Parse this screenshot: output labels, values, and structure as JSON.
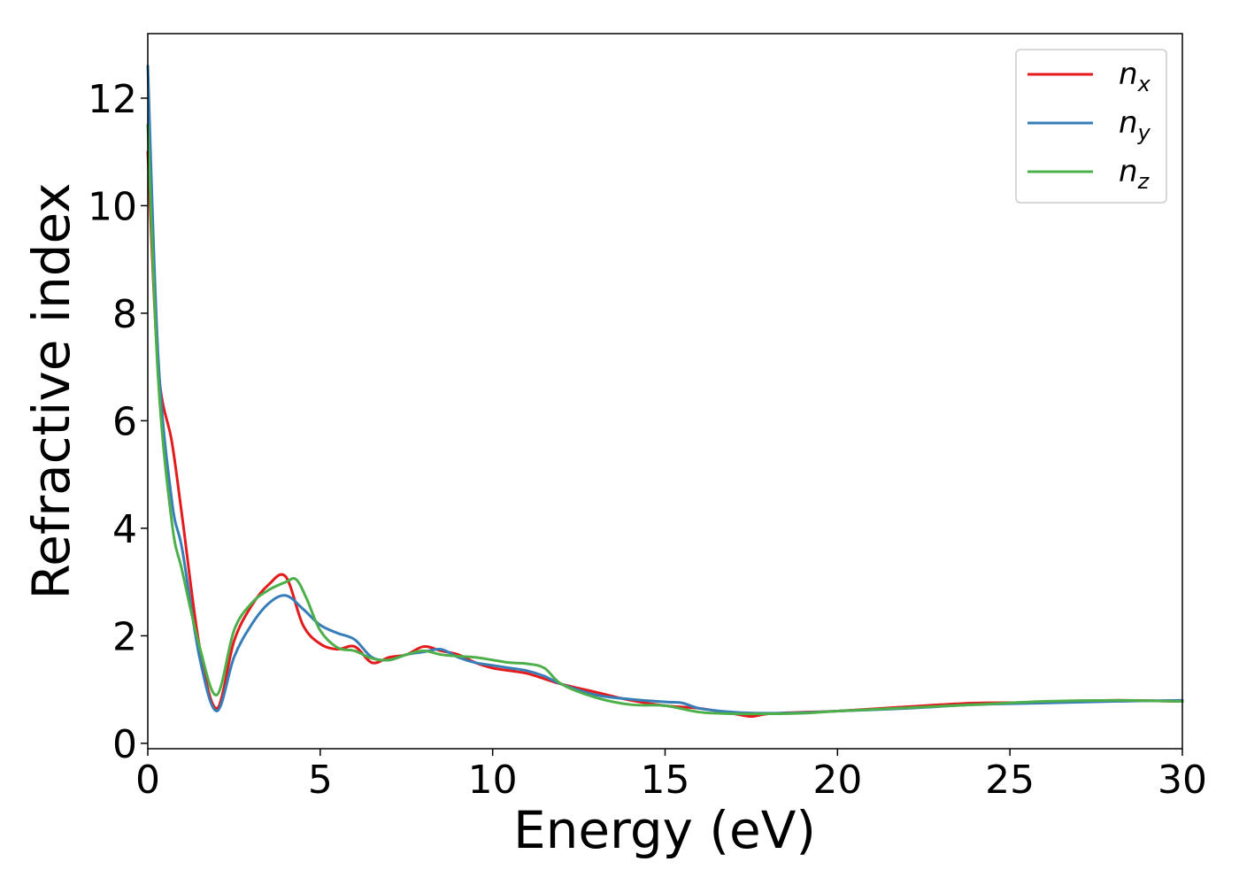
{
  "chart_data": {
    "type": "line",
    "title": "",
    "xlabel": "Energy (eV)",
    "ylabel": "Refractive index",
    "xlim": [
      0,
      30
    ],
    "ylim": [
      -0.1,
      13.2
    ],
    "xticks": [
      0,
      5,
      10,
      15,
      20,
      25,
      30
    ],
    "yticks": [
      0,
      2,
      4,
      6,
      8,
      10,
      12
    ],
    "grid": false,
    "legend": "top-right",
    "series": [
      {
        "name": "n_x",
        "base": "n",
        "sub": "x",
        "color": "#e41a1c",
        "x": [
          0,
          0.3,
          0.7,
          1.0,
          1.5,
          2.0,
          2.5,
          3.0,
          3.5,
          4.0,
          4.5,
          5.0,
          5.5,
          6.0,
          6.5,
          7.0,
          7.5,
          8.0,
          8.5,
          9.0,
          9.5,
          10.0,
          10.5,
          11.0,
          11.5,
          12.0,
          13.0,
          14.0,
          15.0,
          16.0,
          17.0,
          17.5,
          18.0,
          19.0,
          20.0,
          22.0,
          24.0,
          26.0,
          28.0,
          30.0
        ],
        "y": [
          11.0,
          7.0,
          5.6,
          4.2,
          1.8,
          0.65,
          1.9,
          2.55,
          2.95,
          3.1,
          2.2,
          1.85,
          1.75,
          1.8,
          1.5,
          1.6,
          1.65,
          1.8,
          1.72,
          1.65,
          1.5,
          1.4,
          1.35,
          1.3,
          1.2,
          1.1,
          0.95,
          0.8,
          0.7,
          0.65,
          0.55,
          0.5,
          0.55,
          0.58,
          0.6,
          0.68,
          0.75,
          0.76,
          0.8,
          0.78
        ]
      },
      {
        "name": "n_y",
        "base": "n",
        "sub": "y",
        "color": "#377eb8",
        "x": [
          0,
          0.3,
          0.7,
          1.0,
          1.5,
          2.0,
          2.5,
          3.0,
          3.5,
          4.0,
          4.5,
          5.0,
          5.5,
          6.0,
          6.5,
          7.0,
          7.5,
          8.0,
          8.5,
          9.0,
          9.5,
          10.0,
          10.5,
          11.0,
          11.5,
          12.0,
          13.0,
          14.0,
          15.0,
          15.5,
          16.0,
          17.0,
          18.0,
          19.0,
          20.0,
          22.0,
          24.0,
          26.0,
          28.0,
          30.0
        ],
        "y": [
          12.6,
          7.2,
          4.5,
          3.6,
          1.6,
          0.6,
          1.6,
          2.2,
          2.6,
          2.75,
          2.5,
          2.2,
          2.05,
          1.93,
          1.6,
          1.55,
          1.65,
          1.7,
          1.75,
          1.6,
          1.5,
          1.45,
          1.4,
          1.35,
          1.25,
          1.1,
          0.9,
          0.82,
          0.77,
          0.75,
          0.65,
          0.58,
          0.56,
          0.57,
          0.6,
          0.65,
          0.72,
          0.75,
          0.78,
          0.8
        ]
      },
      {
        "name": "n_z",
        "base": "n",
        "sub": "z",
        "color": "#4daf4a",
        "x": [
          0,
          0.3,
          0.7,
          1.0,
          1.5,
          2.0,
          2.5,
          3.0,
          3.5,
          4.0,
          4.3,
          4.6,
          5.0,
          5.5,
          6.0,
          6.5,
          7.0,
          7.5,
          8.0,
          8.5,
          9.0,
          9.5,
          10.0,
          10.5,
          11.0,
          11.5,
          12.0,
          13.0,
          14.0,
          15.0,
          16.0,
          17.0,
          18.0,
          19.0,
          20.0,
          22.0,
          24.0,
          26.0,
          28.0,
          30.0
        ],
        "y": [
          11.5,
          6.8,
          4.1,
          3.2,
          1.8,
          0.9,
          2.1,
          2.6,
          2.85,
          3.0,
          3.05,
          2.7,
          2.1,
          1.78,
          1.72,
          1.58,
          1.55,
          1.65,
          1.72,
          1.65,
          1.62,
          1.6,
          1.55,
          1.5,
          1.48,
          1.4,
          1.1,
          0.85,
          0.72,
          0.7,
          0.58,
          0.55,
          0.55,
          0.56,
          0.6,
          0.66,
          0.72,
          0.78,
          0.8,
          0.78
        ]
      }
    ]
  }
}
